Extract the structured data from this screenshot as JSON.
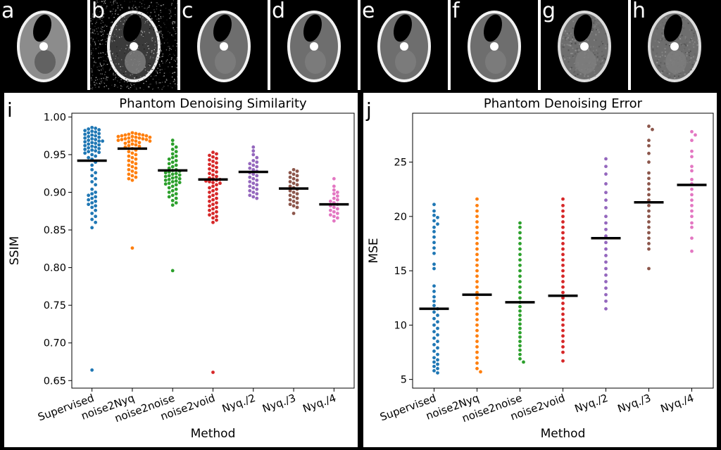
{
  "panels": [
    {
      "letter": "a",
      "kind": "phantom"
    },
    {
      "letter": "b",
      "kind": "noisy"
    },
    {
      "letter": "c",
      "kind": "smooth"
    },
    {
      "letter": "d",
      "kind": "smooth"
    },
    {
      "letter": "e",
      "kind": "smooth"
    },
    {
      "letter": "f",
      "kind": "smooth"
    },
    {
      "letter": "g",
      "kind": "grainy"
    },
    {
      "letter": "h",
      "kind": "grainy"
    }
  ],
  "chart_data": [
    {
      "panel_letter": "i",
      "type": "scatter",
      "subtype": "swarm",
      "title": "Phantom Denoising Similarity",
      "xlabel": "Method",
      "ylabel": "SSIM",
      "categories": [
        "Supervised",
        "noise2Nyq",
        "noise2noise",
        "noise2void",
        "Nyq./2",
        "Nyq./3",
        "Nyq./4"
      ],
      "ylim": [
        0.64,
        1.005
      ],
      "yticks": [
        "0.65",
        "0.70",
        "0.75",
        "0.80",
        "0.85",
        "0.90",
        "0.95",
        "1.00"
      ],
      "yticks_values": [
        0.65,
        0.7,
        0.75,
        0.8,
        0.85,
        0.9,
        0.95,
        1.0
      ],
      "colors": [
        "#1f77b4",
        "#ff7f0e",
        "#2ca02c",
        "#d62728",
        "#9467bd",
        "#8c564b",
        "#e377c2"
      ],
      "means": [
        0.942,
        0.958,
        0.929,
        0.917,
        0.927,
        0.905,
        0.884
      ],
      "series": [
        {
          "values": [
            0.986,
            0.985,
            0.984,
            0.983,
            0.982,
            0.981,
            0.98,
            0.979,
            0.978,
            0.977,
            0.976,
            0.975,
            0.974,
            0.973,
            0.972,
            0.971,
            0.97,
            0.969,
            0.968,
            0.968,
            0.967,
            0.966,
            0.965,
            0.964,
            0.963,
            0.962,
            0.961,
            0.96,
            0.959,
            0.958,
            0.957,
            0.956,
            0.955,
            0.954,
            0.953,
            0.952,
            0.95,
            0.948,
            0.946,
            0.944,
            0.94,
            0.936,
            0.93,
            0.926,
            0.922,
            0.918,
            0.914,
            0.91,
            0.904,
            0.9,
            0.898,
            0.896,
            0.894,
            0.892,
            0.89,
            0.888,
            0.886,
            0.884,
            0.882,
            0.88,
            0.876,
            0.872,
            0.868,
            0.864,
            0.86,
            0.853,
            0.664
          ]
        },
        {
          "values": [
            0.979,
            0.978,
            0.977,
            0.977,
            0.976,
            0.976,
            0.975,
            0.975,
            0.974,
            0.974,
            0.973,
            0.973,
            0.972,
            0.972,
            0.971,
            0.971,
            0.97,
            0.97,
            0.969,
            0.969,
            0.968,
            0.968,
            0.967,
            0.966,
            0.965,
            0.964,
            0.963,
            0.962,
            0.961,
            0.96,
            0.958,
            0.956,
            0.954,
            0.952,
            0.95,
            0.948,
            0.946,
            0.944,
            0.942,
            0.94,
            0.938,
            0.936,
            0.934,
            0.932,
            0.93,
            0.928,
            0.926,
            0.924,
            0.922,
            0.92,
            0.918,
            0.916,
            0.826
          ]
        },
        {
          "values": [
            0.969,
            0.964,
            0.96,
            0.957,
            0.954,
            0.951,
            0.948,
            0.946,
            0.944,
            0.942,
            0.94,
            0.938,
            0.936,
            0.934,
            0.932,
            0.93,
            0.929,
            0.928,
            0.927,
            0.926,
            0.925,
            0.924,
            0.923,
            0.922,
            0.921,
            0.92,
            0.919,
            0.918,
            0.917,
            0.916,
            0.915,
            0.914,
            0.913,
            0.912,
            0.911,
            0.91,
            0.908,
            0.906,
            0.904,
            0.902,
            0.9,
            0.898,
            0.896,
            0.894,
            0.892,
            0.889,
            0.886,
            0.883,
            0.796
          ]
        },
        {
          "values": [
            0.953,
            0.951,
            0.949,
            0.947,
            0.945,
            0.943,
            0.941,
            0.939,
            0.937,
            0.935,
            0.933,
            0.931,
            0.929,
            0.927,
            0.925,
            0.923,
            0.921,
            0.919,
            0.918,
            0.917,
            0.916,
            0.915,
            0.914,
            0.913,
            0.912,
            0.91,
            0.908,
            0.906,
            0.904,
            0.902,
            0.9,
            0.898,
            0.896,
            0.894,
            0.892,
            0.89,
            0.888,
            0.886,
            0.884,
            0.882,
            0.88,
            0.878,
            0.876,
            0.874,
            0.872,
            0.87,
            0.868,
            0.866,
            0.863,
            0.86,
            0.661
          ]
        },
        {
          "values": [
            0.96,
            0.955,
            0.95,
            0.946,
            0.942,
            0.94,
            0.938,
            0.936,
            0.934,
            0.932,
            0.93,
            0.928,
            0.926,
            0.924,
            0.922,
            0.92,
            0.918,
            0.916,
            0.914,
            0.912,
            0.91,
            0.908,
            0.906,
            0.904,
            0.902,
            0.9,
            0.898,
            0.896,
            0.894,
            0.892
          ]
        },
        {
          "values": [
            0.93,
            0.928,
            0.926,
            0.924,
            0.922,
            0.92,
            0.918,
            0.916,
            0.914,
            0.912,
            0.91,
            0.908,
            0.906,
            0.904,
            0.902,
            0.9,
            0.898,
            0.896,
            0.894,
            0.892,
            0.89,
            0.888,
            0.886,
            0.884,
            0.882,
            0.88,
            0.872
          ]
        },
        {
          "values": [
            0.918,
            0.908,
            0.903,
            0.9,
            0.898,
            0.895,
            0.892,
            0.89,
            0.888,
            0.886,
            0.884,
            0.882,
            0.88,
            0.878,
            0.876,
            0.874,
            0.872,
            0.87,
            0.868,
            0.866,
            0.862
          ]
        }
      ]
    },
    {
      "panel_letter": "j",
      "type": "scatter",
      "subtype": "swarm",
      "title": "Phantom Denoising Error",
      "xlabel": "Method",
      "ylabel": "MSE",
      "categories": [
        "Supervised",
        "noise2Nyq",
        "noise2noise",
        "noise2void",
        "Nyq./2",
        "Nyq./3",
        "Nyq./4"
      ],
      "ylim": [
        4.2,
        29.5
      ],
      "yticks": [
        "5",
        "10",
        "15",
        "20",
        "25"
      ],
      "yticks_values": [
        5,
        10,
        15,
        20,
        25
      ],
      "colors": [
        "#1f77b4",
        "#ff7f0e",
        "#2ca02c",
        "#d62728",
        "#9467bd",
        "#8c564b",
        "#e377c2"
      ],
      "means": [
        11.5,
        12.8,
        12.1,
        12.7,
        18.0,
        21.3,
        22.9
      ],
      "series": [
        {
          "values": [
            21.1,
            20.5,
            20.1,
            19.9,
            19.6,
            19.3,
            19.0,
            18.6,
            18.1,
            17.6,
            17.1,
            16.6,
            15.6,
            15.2,
            13.6,
            13.1,
            12.6,
            12.2,
            11.8,
            11.5,
            11.2,
            10.9,
            10.6,
            10.3,
            10.0,
            9.7,
            9.4,
            9.1,
            8.8,
            8.5,
            8.2,
            7.9,
            7.6,
            7.3,
            7.0,
            6.8,
            6.6,
            6.4,
            6.2,
            6.0,
            5.8,
            5.6
          ]
        },
        {
          "values": [
            21.6,
            21.0,
            20.5,
            20.0,
            19.5,
            19.0,
            18.5,
            18.0,
            17.5,
            17.0,
            16.5,
            16.0,
            15.5,
            15.0,
            14.5,
            14.0,
            13.5,
            13.0,
            12.5,
            12.0,
            11.5,
            11.0,
            10.5,
            10.0,
            9.5,
            9.0,
            8.5,
            8.0,
            7.5,
            7.0,
            6.5,
            6.0,
            5.7
          ]
        },
        {
          "values": [
            19.4,
            19.0,
            18.5,
            18.0,
            17.5,
            17.0,
            16.5,
            16.0,
            15.5,
            15.0,
            14.5,
            14.0,
            13.5,
            13.0,
            12.5,
            12.1,
            11.7,
            11.3,
            10.9,
            10.5,
            10.1,
            9.7,
            9.3,
            8.9,
            8.5,
            8.1,
            7.7,
            7.3,
            6.9,
            6.6
          ]
        },
        {
          "values": [
            21.6,
            21.0,
            20.5,
            20.0,
            19.5,
            19.0,
            18.5,
            18.0,
            17.5,
            17.0,
            16.5,
            16.0,
            15.5,
            15.0,
            14.5,
            14.0,
            13.5,
            13.0,
            12.5,
            12.0,
            11.5,
            11.0,
            10.5,
            10.0,
            9.5,
            9.0,
            8.5,
            8.0,
            7.5,
            6.7
          ]
        },
        {
          "values": [
            25.3,
            24.6,
            23.9,
            23.0,
            22.2,
            21.5,
            20.8,
            20.0,
            19.4,
            18.8,
            18.2,
            17.6,
            17.0,
            16.4,
            15.8,
            15.2,
            14.6,
            14.0,
            13.4,
            12.8,
            12.2,
            11.5
          ]
        },
        {
          "values": [
            28.3,
            28.0,
            27.0,
            26.5,
            25.8,
            25.0,
            24.0,
            23.5,
            23.0,
            22.5,
            22.0,
            21.5,
            21.0,
            20.5,
            20.0,
            19.5,
            19.0,
            18.5,
            18.0,
            17.5,
            17.0,
            15.2
          ]
        },
        {
          "values": [
            27.8,
            27.5,
            27.0,
            26.0,
            25.5,
            24.6,
            24.2,
            23.4,
            23.0,
            22.5,
            22.0,
            21.5,
            21.0,
            20.5,
            20.0,
            19.4,
            19.0,
            18.0,
            16.8
          ]
        }
      ]
    }
  ]
}
